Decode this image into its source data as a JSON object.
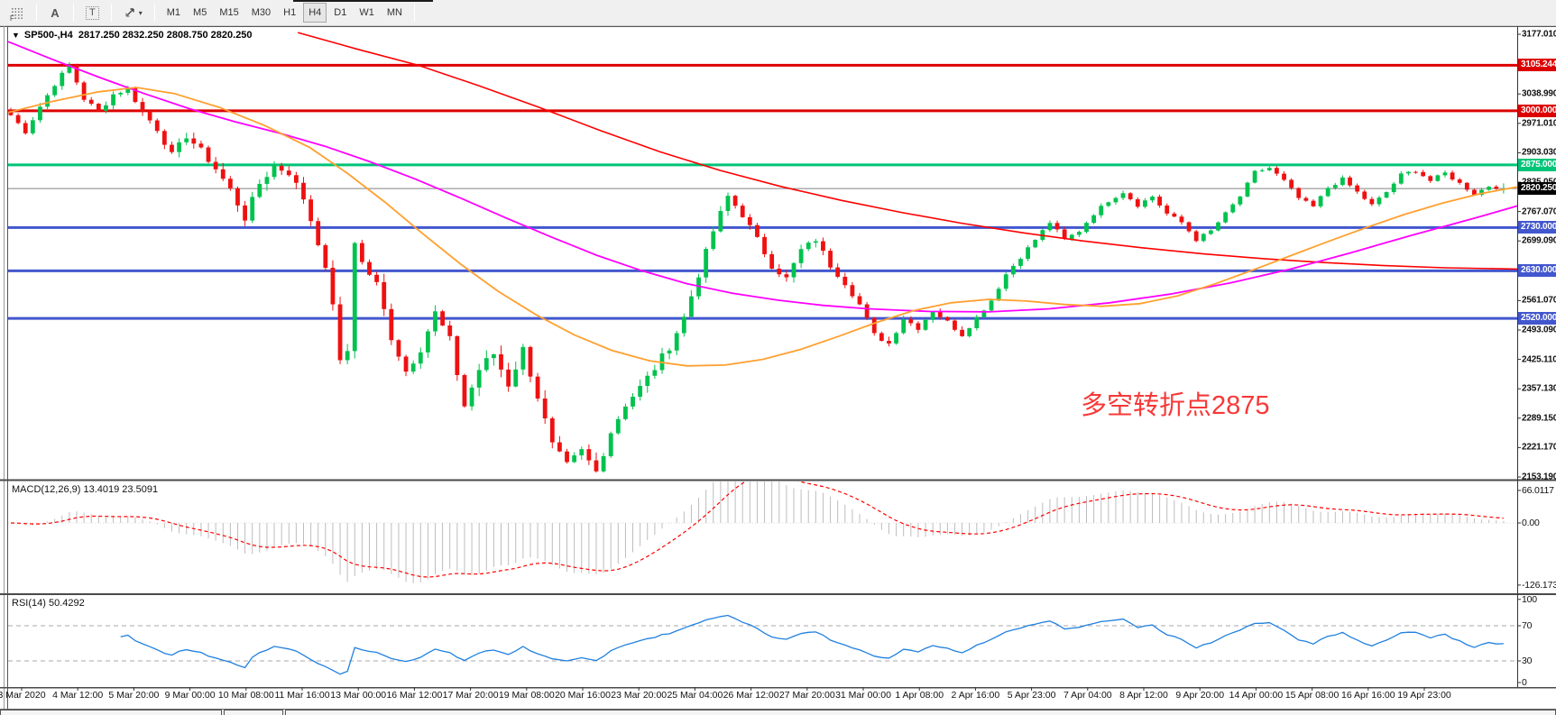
{
  "toolbar": {
    "icon_f": "F",
    "icon_a": "A",
    "icon_t": "T",
    "timeframes": [
      "M1",
      "M5",
      "M15",
      "M30",
      "H1",
      "H4",
      "D1",
      "W1",
      "MN"
    ],
    "active_timeframe": "H4"
  },
  "chart": {
    "symbol": "SP500-,H4",
    "ohlc": "2817.250 2832.250 2808.750 2820.250",
    "annotation": "多空转折点2875",
    "current_price": {
      "label": "2820.250",
      "value": 2820.25,
      "line_color": "#808080",
      "badge_bg": "#000000"
    },
    "price_axis_ticks": [
      "3177.010",
      "3038.990",
      "2971.010",
      "2903.030",
      "2835.050",
      "2767.070",
      "2699.090",
      "2561.070",
      "2493.090",
      "2425.110",
      "2357.130",
      "2289.150",
      "2221.170",
      "2153.190"
    ],
    "hlines": [
      {
        "label": "3105.244",
        "value": 3105.244,
        "color": "#dd0000",
        "width": 3
      },
      {
        "label": "3000.000",
        "value": 3000.0,
        "color": "#dd0000",
        "width": 3
      },
      {
        "label": "2875.000",
        "value": 2875.0,
        "color": "#00c478",
        "width": 3
      },
      {
        "label": "2730.000",
        "value": 2730.0,
        "color": "#4257ce",
        "width": 3
      },
      {
        "label": "2630.000",
        "value": 2630.0,
        "color": "#4257ce",
        "width": 3
      },
      {
        "label": "2520.000",
        "value": 2520.0,
        "color": "#4257ce",
        "width": 3
      }
    ],
    "time_axis": [
      "3 Mar 2020",
      "4 Mar 12:00",
      "5 Mar 20:00",
      "9 Mar 00:00",
      "10 Mar 08:00",
      "11 Mar 16:00",
      "13 Mar 00:00",
      "16 Mar 12:00",
      "17 Mar 20:00",
      "19 Mar 08:00",
      "20 Mar 16:00",
      "23 Mar 20:00",
      "25 Mar 04:00",
      "26 Mar 12:00",
      "27 Mar 20:00",
      "31 Mar 00:00",
      "1 Apr 08:00",
      "2 Apr 16:00",
      "5 Apr 23:00",
      "7 Apr 04:00",
      "8 Apr 12:00",
      "9 Apr 20:00",
      "14 Apr 00:00",
      "15 Apr 08:00",
      "16 Apr 16:00",
      "19 Apr 23:00"
    ]
  },
  "macd": {
    "label": "MACD(12,26,9)",
    "values": "13.4019 23.5091",
    "axis": [
      "66.0117",
      "0.00",
      "-126.173"
    ]
  },
  "rsi": {
    "label": "RSI(14)",
    "value": "50.4292",
    "axis": [
      "100",
      "70",
      "30",
      "0"
    ]
  },
  "colors": {
    "candle_up": "#00c24e",
    "candle_down": "#ee1111",
    "ma_fast": "#ffa030",
    "ma_mid": "#ff00ff",
    "ma_slow": "#ff0000",
    "macd_hist": "#bdbdbd",
    "macd_signal": "#ff0000",
    "rsi_line": "#2080e0",
    "level_dash": "#aaaaaa",
    "annotation": "#f83838"
  },
  "chart_data": {
    "type": "candlestick",
    "symbol": "SP500-",
    "timeframe": "H4",
    "title": "SP500-,H4 2817.250 2832.250 2808.750 2820.250",
    "last_bar": {
      "open": 2817.25,
      "high": 2832.25,
      "low": 2808.75,
      "close": 2820.25
    },
    "price_range": [
      2153.19,
      3177.01
    ],
    "bars": 205,
    "noise_seed": 7,
    "hline_levels": [
      3105.244,
      3000.0,
      2875.0,
      2730.0,
      2630.0,
      2520.0
    ],
    "close_waypoints": [
      [
        0,
        2990
      ],
      [
        2,
        2952
      ],
      [
        4,
        3010
      ],
      [
        6,
        3062
      ],
      [
        8,
        3105
      ],
      [
        10,
        3028
      ],
      [
        12,
        2998
      ],
      [
        14,
        3038
      ],
      [
        16,
        3052
      ],
      [
        18,
        2998
      ],
      [
        20,
        2958
      ],
      [
        22,
        2898
      ],
      [
        24,
        2942
      ],
      [
        26,
        2908
      ],
      [
        28,
        2866
      ],
      [
        30,
        2818
      ],
      [
        32,
        2752
      ],
      [
        34,
        2832
      ],
      [
        36,
        2872
      ],
      [
        38,
        2858
      ],
      [
        40,
        2798
      ],
      [
        42,
        2698
      ],
      [
        44,
        2558
      ],
      [
        45,
        2415
      ],
      [
        46,
        2445
      ],
      [
        47,
        2700
      ],
      [
        48,
        2648
      ],
      [
        50,
        2598
      ],
      [
        52,
        2478
      ],
      [
        54,
        2398
      ],
      [
        56,
        2452
      ],
      [
        58,
        2532
      ],
      [
        60,
        2468
      ],
      [
        62,
        2318
      ],
      [
        64,
        2402
      ],
      [
        66,
        2438
      ],
      [
        68,
        2368
      ],
      [
        70,
        2448
      ],
      [
        72,
        2340
      ],
      [
        74,
        2225
      ],
      [
        76,
        2178
      ],
      [
        78,
        2212
      ],
      [
        80,
        2165
      ],
      [
        82,
        2258
      ],
      [
        84,
        2322
      ],
      [
        86,
        2360
      ],
      [
        88,
        2405
      ],
      [
        90,
        2455
      ],
      [
        92,
        2522
      ],
      [
        94,
        2622
      ],
      [
        96,
        2722
      ],
      [
        98,
        2802
      ],
      [
        100,
        2760
      ],
      [
        102,
        2702
      ],
      [
        104,
        2642
      ],
      [
        106,
        2612
      ],
      [
        108,
        2678
      ],
      [
        110,
        2702
      ],
      [
        112,
        2642
      ],
      [
        114,
        2602
      ],
      [
        116,
        2552
      ],
      [
        118,
        2482
      ],
      [
        120,
        2462
      ],
      [
        122,
        2520
      ],
      [
        124,
        2498
      ],
      [
        126,
        2538
      ],
      [
        128,
        2512
      ],
      [
        130,
        2482
      ],
      [
        132,
        2522
      ],
      [
        134,
        2562
      ],
      [
        136,
        2622
      ],
      [
        138,
        2662
      ],
      [
        140,
        2702
      ],
      [
        142,
        2742
      ],
      [
        144,
        2702
      ],
      [
        146,
        2722
      ],
      [
        148,
        2762
      ],
      [
        150,
        2792
      ],
      [
        152,
        2812
      ],
      [
        154,
        2782
      ],
      [
        156,
        2802
      ],
      [
        158,
        2762
      ],
      [
        160,
        2742
      ],
      [
        162,
        2702
      ],
      [
        164,
        2722
      ],
      [
        166,
        2762
      ],
      [
        168,
        2802
      ],
      [
        170,
        2858
      ],
      [
        172,
        2868
      ],
      [
        174,
        2838
      ],
      [
        176,
        2798
      ],
      [
        178,
        2778
      ],
      [
        180,
        2822
      ],
      [
        182,
        2842
      ],
      [
        184,
        2812
      ],
      [
        186,
        2782
      ],
      [
        188,
        2812
      ],
      [
        190,
        2852
      ],
      [
        192,
        2862
      ],
      [
        194,
        2838
      ],
      [
        196,
        2856
      ],
      [
        198,
        2832
      ],
      [
        200,
        2808
      ],
      [
        202,
        2826
      ],
      [
        204,
        2820.25
      ]
    ],
    "ma_fast_waypoints": [
      [
        0,
        2996
      ],
      [
        0.03,
        3022
      ],
      [
        0.06,
        3044
      ],
      [
        0.085,
        3054
      ],
      [
        0.11,
        3040
      ],
      [
        0.14,
        3008
      ],
      [
        0.17,
        2966
      ],
      [
        0.2,
        2915
      ],
      [
        0.225,
        2855
      ],
      [
        0.25,
        2788
      ],
      [
        0.275,
        2715
      ],
      [
        0.3,
        2645
      ],
      [
        0.325,
        2582
      ],
      [
        0.35,
        2528
      ],
      [
        0.375,
        2482
      ],
      [
        0.4,
        2446
      ],
      [
        0.425,
        2422
      ],
      [
        0.45,
        2410
      ],
      [
        0.475,
        2412
      ],
      [
        0.5,
        2425
      ],
      [
        0.525,
        2448
      ],
      [
        0.55,
        2478
      ],
      [
        0.575,
        2510
      ],
      [
        0.6,
        2538
      ],
      [
        0.625,
        2556
      ],
      [
        0.65,
        2564
      ],
      [
        0.675,
        2560
      ],
      [
        0.7,
        2552
      ],
      [
        0.725,
        2548
      ],
      [
        0.75,
        2554
      ],
      [
        0.775,
        2572
      ],
      [
        0.8,
        2600
      ],
      [
        0.825,
        2632
      ],
      [
        0.85,
        2665
      ],
      [
        0.875,
        2698
      ],
      [
        0.9,
        2730
      ],
      [
        0.925,
        2760
      ],
      [
        0.95,
        2786
      ],
      [
        0.975,
        2808
      ],
      [
        1.0,
        2824
      ]
    ],
    "ma_mid_waypoints": [
      [
        0,
        3160
      ],
      [
        0.03,
        3118
      ],
      [
        0.06,
        3078
      ],
      [
        0.09,
        3040
      ],
      [
        0.12,
        3005
      ],
      [
        0.15,
        2975
      ],
      [
        0.18,
        2948
      ],
      [
        0.21,
        2918
      ],
      [
        0.24,
        2882
      ],
      [
        0.27,
        2842
      ],
      [
        0.3,
        2798
      ],
      [
        0.33,
        2752
      ],
      [
        0.36,
        2708
      ],
      [
        0.39,
        2666
      ],
      [
        0.42,
        2630
      ],
      [
        0.45,
        2600
      ],
      [
        0.48,
        2578
      ],
      [
        0.51,
        2562
      ],
      [
        0.54,
        2550
      ],
      [
        0.57,
        2542
      ],
      [
        0.61,
        2536
      ],
      [
        0.65,
        2535
      ],
      [
        0.69,
        2542
      ],
      [
        0.73,
        2556
      ],
      [
        0.77,
        2576
      ],
      [
        0.81,
        2602
      ],
      [
        0.85,
        2634
      ],
      [
        0.89,
        2672
      ],
      [
        0.93,
        2712
      ],
      [
        0.97,
        2750
      ],
      [
        1.0,
        2780
      ]
    ],
    "ma_slow_waypoints": [
      [
        0.192,
        3181
      ],
      [
        0.232,
        3142
      ],
      [
        0.272,
        3105
      ],
      [
        0.312,
        3058
      ],
      [
        0.352,
        3008
      ],
      [
        0.392,
        2955
      ],
      [
        0.432,
        2905
      ],
      [
        0.472,
        2862
      ],
      [
        0.512,
        2825
      ],
      [
        0.552,
        2793
      ],
      [
        0.592,
        2765
      ],
      [
        0.632,
        2740
      ],
      [
        0.672,
        2718
      ],
      [
        0.712,
        2699
      ],
      [
        0.752,
        2683
      ],
      [
        0.792,
        2669
      ],
      [
        0.832,
        2658
      ],
      [
        0.872,
        2649
      ],
      [
        0.912,
        2642
      ],
      [
        0.952,
        2637
      ],
      [
        1.0,
        2634
      ]
    ],
    "macd_params": [
      12,
      26,
      9
    ],
    "macd_displayed": {
      "macd": 13.4019,
      "signal": 23.5091,
      "axis_max": 66.0117,
      "axis_min": -126.173
    },
    "rsi_period": 14,
    "rsi_displayed": 50.4292,
    "rsi_levels": [
      70,
      30
    ]
  }
}
